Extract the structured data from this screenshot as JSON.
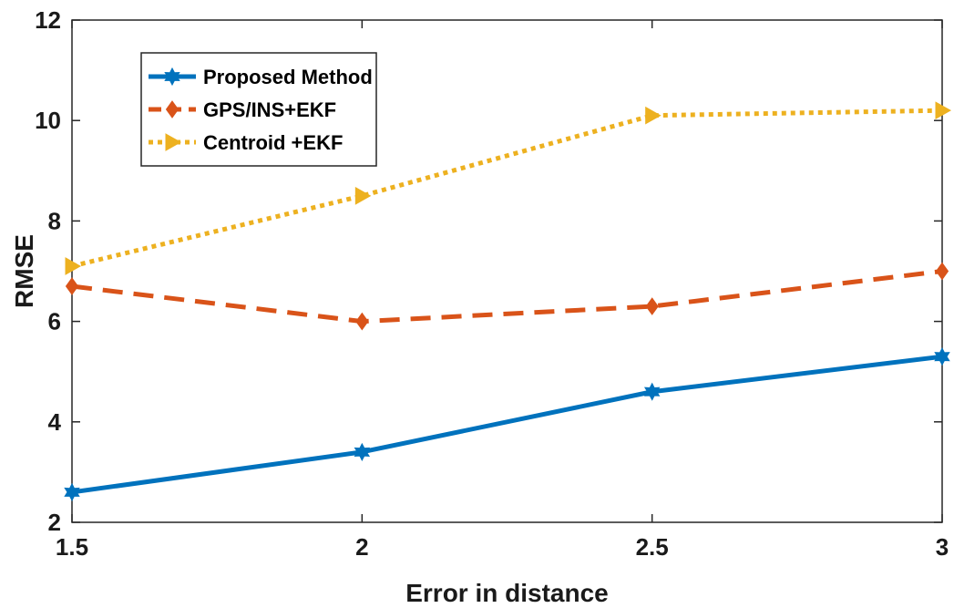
{
  "chart_data": {
    "type": "line",
    "xlabel": "Error in distance",
    "ylabel": "RMSE",
    "x": [
      1.5,
      2,
      2.5,
      3
    ],
    "xticks": [
      "1.5",
      "2",
      "2.5",
      "3"
    ],
    "xlim": [
      1.5,
      3
    ],
    "ylim": [
      2,
      12
    ],
    "yticks": [
      "2",
      "4",
      "6",
      "8",
      "10",
      "12"
    ],
    "grid": false,
    "legend_position": "top-left",
    "series": [
      {
        "name": "Proposed Method",
        "values": [
          2.6,
          3.4,
          4.6,
          5.3
        ],
        "color": "#0072BD",
        "style": "solid",
        "marker": "hexagram"
      },
      {
        "name": "GPS/INS+EKF",
        "values": [
          6.7,
          6.0,
          6.3,
          7.0
        ],
        "color": "#D95319",
        "style": "dashed",
        "marker": "diamond"
      },
      {
        "name": "Centroid +EKF",
        "values": [
          7.1,
          8.5,
          10.1,
          10.2
        ],
        "color": "#EDB120",
        "style": "dotted",
        "marker": "triangle-right"
      }
    ]
  }
}
